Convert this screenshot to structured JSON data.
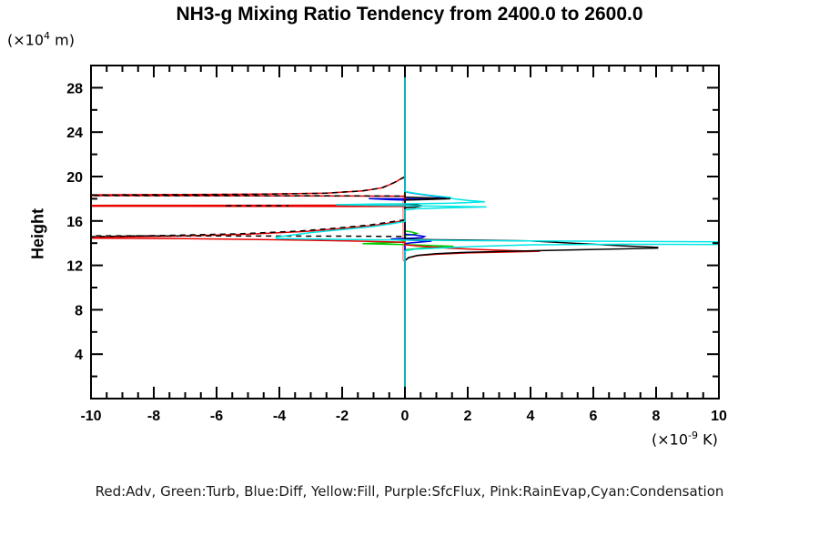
{
  "header": {
    "title": "NH3-g Mixing Ratio Tendency from 2400.0 to 2600.0"
  },
  "axes": {
    "y_axis_label": "Height",
    "y_unit": {
      "prefix": "(×10",
      "exponent": "4",
      "suffix": " m)"
    },
    "x_unit": {
      "prefix": "(×10",
      "exponent": "-9",
      "suffix": " K)"
    }
  },
  "legend": {
    "text": "Red:Adv, Green:Turb, Blue:Diff, Yellow:Fill, Purple:SfcFlux, Pink:RainEvap,Cyan:Condensation"
  },
  "chart_data": {
    "type": "line",
    "title": "NH3-g Mixing Ratio Tendency from 2400.0 to 2600.0",
    "xlabel": "(x10^-9 K)",
    "ylabel": "Height (x10^4 m)",
    "xlim": [
      -10,
      10
    ],
    "ylim": [
      0,
      30
    ],
    "grid": false,
    "zero_line_x": 0,
    "x_ticks": {
      "major": [
        -10,
        -8,
        -6,
        -4,
        -2,
        0,
        2,
        4,
        6,
        8,
        10
      ],
      "labels": [
        "-10",
        "-8",
        "-6",
        "-4",
        "-2",
        "0",
        "2",
        "4",
        "6",
        "8",
        "10"
      ],
      "minor_step": 0.5
    },
    "y_ticks": {
      "major": [
        4,
        8,
        12,
        16,
        20,
        24,
        28
      ],
      "labels": [
        "4",
        "8",
        "12",
        "16",
        "20",
        "24",
        "28"
      ],
      "minor_step": 2
    },
    "series": [
      {
        "key": "fill",
        "label": "Yellow:Fill",
        "color": "#ffff00",
        "paths": [
          [
            [
              0,
              30
            ],
            [
              0,
              0
            ]
          ]
        ]
      },
      {
        "key": "sfcflux",
        "label": "Purple:SfcFlux",
        "color": "#9900cc",
        "paths": [
          [
            [
              0,
              30
            ],
            [
              0,
              0
            ]
          ]
        ]
      },
      {
        "key": "rainevap",
        "label": "Pink:RainEvap",
        "color": "#ff8f8f",
        "paths": [
          [
            [
              0,
              30
            ],
            [
              0,
              18.4
            ],
            [
              -0.06,
              18.2
            ],
            [
              -0.06,
              12.5
            ],
            [
              0,
              12.3
            ],
            [
              0,
              0
            ]
          ]
        ]
      },
      {
        "key": "turb",
        "label": "Green:Turb",
        "color": "#00cc00",
        "paths": [
          [
            [
              0,
              30
            ],
            [
              0,
              15.1
            ],
            [
              0.22,
              15.0
            ],
            [
              0.38,
              14.88
            ],
            [
              0.25,
              14.77
            ],
            [
              0,
              14.7
            ],
            [
              0,
              14.35
            ],
            [
              -0.3,
              14.3
            ],
            [
              0,
              14.22
            ],
            [
              0,
              14.1
            ],
            [
              -0.8,
              14.02
            ],
            [
              -1.35,
              13.95
            ],
            [
              -0.6,
              13.9
            ],
            [
              0,
              13.87
            ],
            [
              0.7,
              13.8
            ],
            [
              1.55,
              13.72
            ],
            [
              0.9,
              13.62
            ],
            [
              0.35,
              13.5
            ],
            [
              0,
              13.4
            ],
            [
              0,
              0
            ]
          ]
        ]
      },
      {
        "key": "diff",
        "label": "Blue:Diff",
        "color": "#0000dd",
        "paths": [
          [
            [
              0,
              30
            ],
            [
              0,
              18.62
            ],
            [
              0.25,
              18.5
            ],
            [
              0.55,
              18.38
            ],
            [
              0.95,
              18.22
            ],
            [
              1.3,
              18.1
            ],
            [
              1.3,
              18.0
            ],
            [
              0.5,
              17.98
            ],
            [
              -0.5,
              18.0
            ],
            [
              -1.15,
              18.02
            ],
            [
              -0.5,
              17.92
            ],
            [
              0,
              17.88
            ],
            [
              0,
              14.8
            ],
            [
              0.35,
              14.72
            ],
            [
              0.62,
              14.6
            ],
            [
              0.55,
              14.5
            ],
            [
              0.2,
              14.45
            ],
            [
              -0.45,
              14.38
            ],
            [
              -0.2,
              14.3
            ],
            [
              0.3,
              14.25
            ],
            [
              0.85,
              14.18
            ],
            [
              0.5,
              14.1
            ],
            [
              0.15,
              14.02
            ],
            [
              0,
              13.95
            ],
            [
              0,
              0
            ]
          ]
        ]
      },
      {
        "key": "adv",
        "label": "Red:Adv",
        "color": "#e80000",
        "paths": [
          [
            [
              0,
              30
            ],
            [
              0,
              20.0
            ],
            [
              -0.1,
              19.85
            ],
            [
              -0.3,
              19.5
            ],
            [
              -0.7,
              19.0
            ],
            [
              -1.3,
              18.72
            ],
            [
              -2.5,
              18.5
            ],
            [
              -4.5,
              18.42
            ],
            [
              -7,
              18.38
            ],
            [
              -10,
              18.35
            ],
            [
              -10,
              18.28
            ],
            [
              -6,
              18.27
            ],
            [
              -2,
              18.25
            ],
            [
              0,
              18.23
            ],
            [
              0,
              17.42
            ],
            [
              -10,
              17.4
            ],
            [
              -10,
              17.33
            ],
            [
              0,
              17.3
            ],
            [
              0,
              16.05
            ],
            [
              -0.4,
              15.85
            ],
            [
              -1.0,
              15.6
            ],
            [
              -1.9,
              15.35
            ],
            [
              -3.2,
              15.05
            ],
            [
              -5,
              14.8
            ],
            [
              -7.5,
              14.62
            ],
            [
              -10,
              14.52
            ],
            [
              -10,
              14.45
            ],
            [
              -7,
              14.4
            ],
            [
              -4,
              14.3
            ],
            [
              -1.5,
              14.18
            ],
            [
              -0.5,
              14.12
            ],
            [
              0,
              14.08
            ],
            [
              0,
              13.85
            ],
            [
              0.6,
              13.7
            ],
            [
              1.4,
              13.55
            ],
            [
              2.4,
              13.42
            ],
            [
              3.5,
              13.32
            ],
            [
              4.3,
              13.27
            ],
            [
              3.2,
              13.2
            ],
            [
              2.0,
              13.12
            ],
            [
              1.0,
              13.0
            ],
            [
              0.4,
              12.88
            ],
            [
              0.12,
              12.7
            ],
            [
              0,
              12.45
            ],
            [
              0,
              0
            ]
          ]
        ]
      },
      {
        "key": "total",
        "label": "Total (black, unlabeled)",
        "color": "#000000",
        "dash": "6 5",
        "paths": [
          [
            [
              0,
              19.95
            ],
            [
              -0.12,
              19.8
            ],
            [
              -0.35,
              19.45
            ],
            [
              -0.75,
              18.97
            ],
            [
              -1.4,
              18.7
            ],
            [
              -2.6,
              18.49
            ],
            [
              -4.6,
              18.41
            ],
            [
              -7,
              18.37
            ],
            [
              -10,
              18.34
            ],
            [
              -10,
              18.29
            ],
            [
              -6,
              18.28
            ],
            [
              -2,
              18.26
            ],
            [
              0,
              18.24
            ]
          ],
          [
            [
              -5.7,
              17.37
            ],
            [
              -3.7,
              17.37
            ]
          ],
          [
            [
              0,
              16.1
            ],
            [
              -0.5,
              15.9
            ],
            [
              -1.1,
              15.65
            ],
            [
              -2,
              15.4
            ],
            [
              -3.3,
              15.1
            ],
            [
              -5.2,
              14.85
            ],
            [
              -7.6,
              14.7
            ],
            [
              -10,
              14.58
            ],
            [
              -10,
              14.66
            ],
            [
              -6,
              14.65
            ],
            [
              -2,
              14.63
            ],
            [
              0,
              14.6
            ]
          ]
        ]
      },
      {
        "key": "total-solid",
        "label": "Total (black, unlabeled)",
        "color": "#000000",
        "paths": [
          [
            [
              0,
              30
            ],
            [
              0,
              18.15
            ],
            [
              0.7,
              18.08
            ],
            [
              1.45,
              18.0
            ],
            [
              0.7,
              17.93
            ],
            [
              0,
              17.88
            ],
            [
              0,
              17.5
            ],
            [
              0.3,
              17.48
            ],
            [
              0.55,
              17.36
            ],
            [
              0.3,
              17.24
            ],
            [
              0,
              17.2
            ],
            [
              0,
              14.35
            ],
            [
              1.0,
              14.3
            ],
            [
              2.5,
              14.26
            ],
            [
              4.0,
              14.2
            ],
            [
              5.0,
              14.05
            ],
            [
              6.0,
              13.9
            ],
            [
              7.0,
              13.75
            ],
            [
              8.05,
              13.62
            ],
            [
              8.05,
              13.55
            ],
            [
              5.5,
              13.4
            ],
            [
              3.5,
              13.28
            ],
            [
              2.0,
              13.18
            ],
            [
              1.0,
              13.05
            ],
            [
              0.4,
              12.9
            ],
            [
              0.12,
              12.7
            ],
            [
              0,
              12.42
            ],
            [
              0,
              0
            ]
          ]
        ]
      },
      {
        "key": "condensation",
        "label": "Cyan:Condensation",
        "color": "#00e5e5",
        "paths": [
          [
            [
              0,
              30
            ],
            [
              0,
              18.65
            ],
            [
              0.3,
              18.5
            ],
            [
              0.7,
              18.35
            ],
            [
              1.1,
              18.22
            ],
            [
              1.45,
              18.12
            ],
            [
              1.5,
              18.02
            ],
            [
              2.0,
              17.85
            ],
            [
              2.55,
              17.72
            ],
            [
              1.5,
              17.6
            ],
            [
              0.3,
              17.55
            ],
            [
              -1.0,
              17.52
            ],
            [
              -2.2,
              17.47
            ],
            [
              -1.0,
              17.42
            ],
            [
              0,
              17.38
            ],
            [
              1.4,
              17.32
            ],
            [
              2.6,
              17.26
            ],
            [
              1.5,
              17.2
            ],
            [
              0.4,
              17.1
            ],
            [
              0,
              17.0
            ],
            [
              0,
              15.95
            ],
            [
              -0.4,
              15.75
            ],
            [
              -1.0,
              15.5
            ],
            [
              -1.9,
              15.25
            ],
            [
              -3.0,
              14.95
            ],
            [
              -4.1,
              14.55
            ],
            [
              -4.1,
              14.42
            ],
            [
              -2.5,
              14.35
            ],
            [
              -1.0,
              14.3
            ],
            [
              0,
              14.28
            ],
            [
              1.5,
              14.24
            ],
            [
              4,
              14.2
            ],
            [
              7,
              14.16
            ],
            [
              10,
              14.12
            ],
            [
              10,
              13.88
            ],
            [
              7,
              13.9
            ],
            [
              4,
              13.85
            ],
            [
              2.2,
              13.7
            ],
            [
              1.0,
              13.55
            ],
            [
              0.3,
              13.45
            ],
            [
              0,
              13.3
            ],
            [
              0,
              0
            ]
          ]
        ]
      }
    ]
  }
}
